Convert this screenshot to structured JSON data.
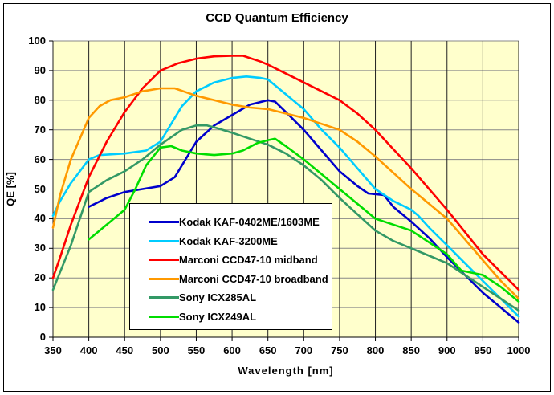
{
  "title": "CCD Quantum Efficiency",
  "chart_data": {
    "type": "line",
    "title": "CCD Quantum Efficiency",
    "xlabel": "Wavelength [nm]",
    "ylabel": "QE [%]",
    "xlim": [
      350,
      1000
    ],
    "ylim": [
      0,
      100
    ],
    "x_ticks": [
      350,
      400,
      450,
      500,
      550,
      600,
      650,
      700,
      750,
      800,
      850,
      900,
      950,
      1000
    ],
    "y_ticks": [
      0,
      10,
      20,
      30,
      40,
      50,
      60,
      70,
      80,
      90,
      100
    ],
    "grid": {
      "horizontal_color": "#888888",
      "vertical_color": "#222222",
      "on": true
    },
    "plot_background": "#FFFFCC",
    "legend_position": "inside lower-left",
    "series": [
      {
        "name": "Kodak KAF-0402ME/1603ME",
        "color": "#0000CC",
        "points": [
          [
            400,
            44
          ],
          [
            425,
            47
          ],
          [
            450,
            49
          ],
          [
            475,
            50
          ],
          [
            500,
            51
          ],
          [
            520,
            54
          ],
          [
            550,
            66
          ],
          [
            575,
            71.5
          ],
          [
            600,
            75
          ],
          [
            625,
            78.5
          ],
          [
            650,
            80
          ],
          [
            660,
            79.5
          ],
          [
            675,
            76
          ],
          [
            700,
            70
          ],
          [
            725,
            63
          ],
          [
            750,
            56
          ],
          [
            775,
            51
          ],
          [
            790,
            48.5
          ],
          [
            812,
            48
          ],
          [
            825,
            44
          ],
          [
            850,
            39
          ],
          [
            875,
            33.5
          ],
          [
            900,
            27
          ],
          [
            925,
            21
          ],
          [
            950,
            15
          ],
          [
            975,
            10
          ],
          [
            1000,
            5
          ]
        ]
      },
      {
        "name": "Kodak KAF-3200ME",
        "color": "#00CCFF",
        "points": [
          [
            350,
            41
          ],
          [
            360,
            46
          ],
          [
            375,
            52
          ],
          [
            400,
            60
          ],
          [
            415,
            61.5
          ],
          [
            450,
            62
          ],
          [
            480,
            63
          ],
          [
            500,
            66
          ],
          [
            515,
            72
          ],
          [
            530,
            78
          ],
          [
            550,
            83
          ],
          [
            575,
            86
          ],
          [
            600,
            87.5
          ],
          [
            620,
            88
          ],
          [
            640,
            87.5
          ],
          [
            650,
            87
          ],
          [
            675,
            82
          ],
          [
            700,
            77
          ],
          [
            725,
            70
          ],
          [
            750,
            64
          ],
          [
            775,
            57
          ],
          [
            800,
            50
          ],
          [
            825,
            46
          ],
          [
            850,
            43
          ],
          [
            860,
            41
          ],
          [
            875,
            37
          ],
          [
            900,
            31
          ],
          [
            925,
            25
          ],
          [
            950,
            19
          ],
          [
            975,
            13
          ],
          [
            1000,
            7
          ]
        ]
      },
      {
        "name": "Marconi CCD47-10 midband",
        "color": "#FF0000",
        "points": [
          [
            350,
            20
          ],
          [
            360,
            27
          ],
          [
            375,
            38
          ],
          [
            400,
            54
          ],
          [
            425,
            66
          ],
          [
            450,
            76
          ],
          [
            475,
            84
          ],
          [
            500,
            90
          ],
          [
            525,
            92.5
          ],
          [
            550,
            94
          ],
          [
            575,
            94.8
          ],
          [
            600,
            95
          ],
          [
            615,
            95
          ],
          [
            640,
            93
          ],
          [
            650,
            92
          ],
          [
            675,
            89
          ],
          [
            700,
            86
          ],
          [
            725,
            83
          ],
          [
            750,
            80
          ],
          [
            775,
            75.5
          ],
          [
            800,
            70
          ],
          [
            825,
            63.5
          ],
          [
            850,
            57
          ],
          [
            875,
            50
          ],
          [
            900,
            43
          ],
          [
            925,
            35.5
          ],
          [
            950,
            28
          ],
          [
            975,
            22
          ],
          [
            1000,
            16
          ]
        ]
      },
      {
        "name": "Marconi CCD47-10 broadband",
        "color": "#FF9900",
        "points": [
          [
            350,
            37
          ],
          [
            360,
            48
          ],
          [
            375,
            60
          ],
          [
            400,
            74
          ],
          [
            415,
            78
          ],
          [
            430,
            80
          ],
          [
            450,
            81
          ],
          [
            475,
            83
          ],
          [
            500,
            84
          ],
          [
            520,
            84
          ],
          [
            550,
            81.5
          ],
          [
            575,
            80
          ],
          [
            600,
            78.5
          ],
          [
            625,
            77.5
          ],
          [
            650,
            77
          ],
          [
            675,
            75.5
          ],
          [
            700,
            74
          ],
          [
            725,
            72
          ],
          [
            750,
            70
          ],
          [
            775,
            66
          ],
          [
            800,
            61
          ],
          [
            825,
            55.5
          ],
          [
            850,
            50
          ],
          [
            875,
            45
          ],
          [
            900,
            40
          ],
          [
            925,
            33
          ],
          [
            950,
            26
          ],
          [
            975,
            19
          ],
          [
            1000,
            13
          ]
        ]
      },
      {
        "name": "Sony ICX285AL",
        "color": "#339966",
        "points": [
          [
            350,
            16
          ],
          [
            360,
            22
          ],
          [
            375,
            31
          ],
          [
            400,
            49
          ],
          [
            425,
            53
          ],
          [
            450,
            56
          ],
          [
            475,
            60
          ],
          [
            500,
            65
          ],
          [
            515,
            67.5
          ],
          [
            530,
            70
          ],
          [
            550,
            71.5
          ],
          [
            565,
            71.5
          ],
          [
            580,
            70.5
          ],
          [
            600,
            69
          ],
          [
            625,
            67
          ],
          [
            650,
            65
          ],
          [
            675,
            62
          ],
          [
            700,
            58
          ],
          [
            725,
            53
          ],
          [
            750,
            47
          ],
          [
            775,
            41.5
          ],
          [
            800,
            36
          ],
          [
            825,
            32.5
          ],
          [
            850,
            30
          ],
          [
            875,
            27.5
          ],
          [
            900,
            25
          ],
          [
            925,
            21
          ],
          [
            950,
            17
          ],
          [
            975,
            13
          ],
          [
            1000,
            9
          ]
        ]
      },
      {
        "name": "Sony ICX249AL",
        "color": "#00DD00",
        "points": [
          [
            400,
            33
          ],
          [
            415,
            36
          ],
          [
            430,
            39
          ],
          [
            450,
            43
          ],
          [
            465,
            50
          ],
          [
            480,
            58
          ],
          [
            500,
            64
          ],
          [
            515,
            64.5
          ],
          [
            530,
            63
          ],
          [
            550,
            62
          ],
          [
            575,
            61.5
          ],
          [
            600,
            62
          ],
          [
            615,
            63
          ],
          [
            635,
            65.5
          ],
          [
            650,
            66.5
          ],
          [
            660,
            67
          ],
          [
            675,
            64.5
          ],
          [
            700,
            60
          ],
          [
            725,
            55
          ],
          [
            750,
            50
          ],
          [
            775,
            45
          ],
          [
            800,
            40
          ],
          [
            825,
            38
          ],
          [
            850,
            36
          ],
          [
            875,
            32
          ],
          [
            900,
            28
          ],
          [
            920,
            22.5
          ],
          [
            950,
            21
          ],
          [
            975,
            17
          ],
          [
            1000,
            12
          ]
        ]
      }
    ]
  }
}
